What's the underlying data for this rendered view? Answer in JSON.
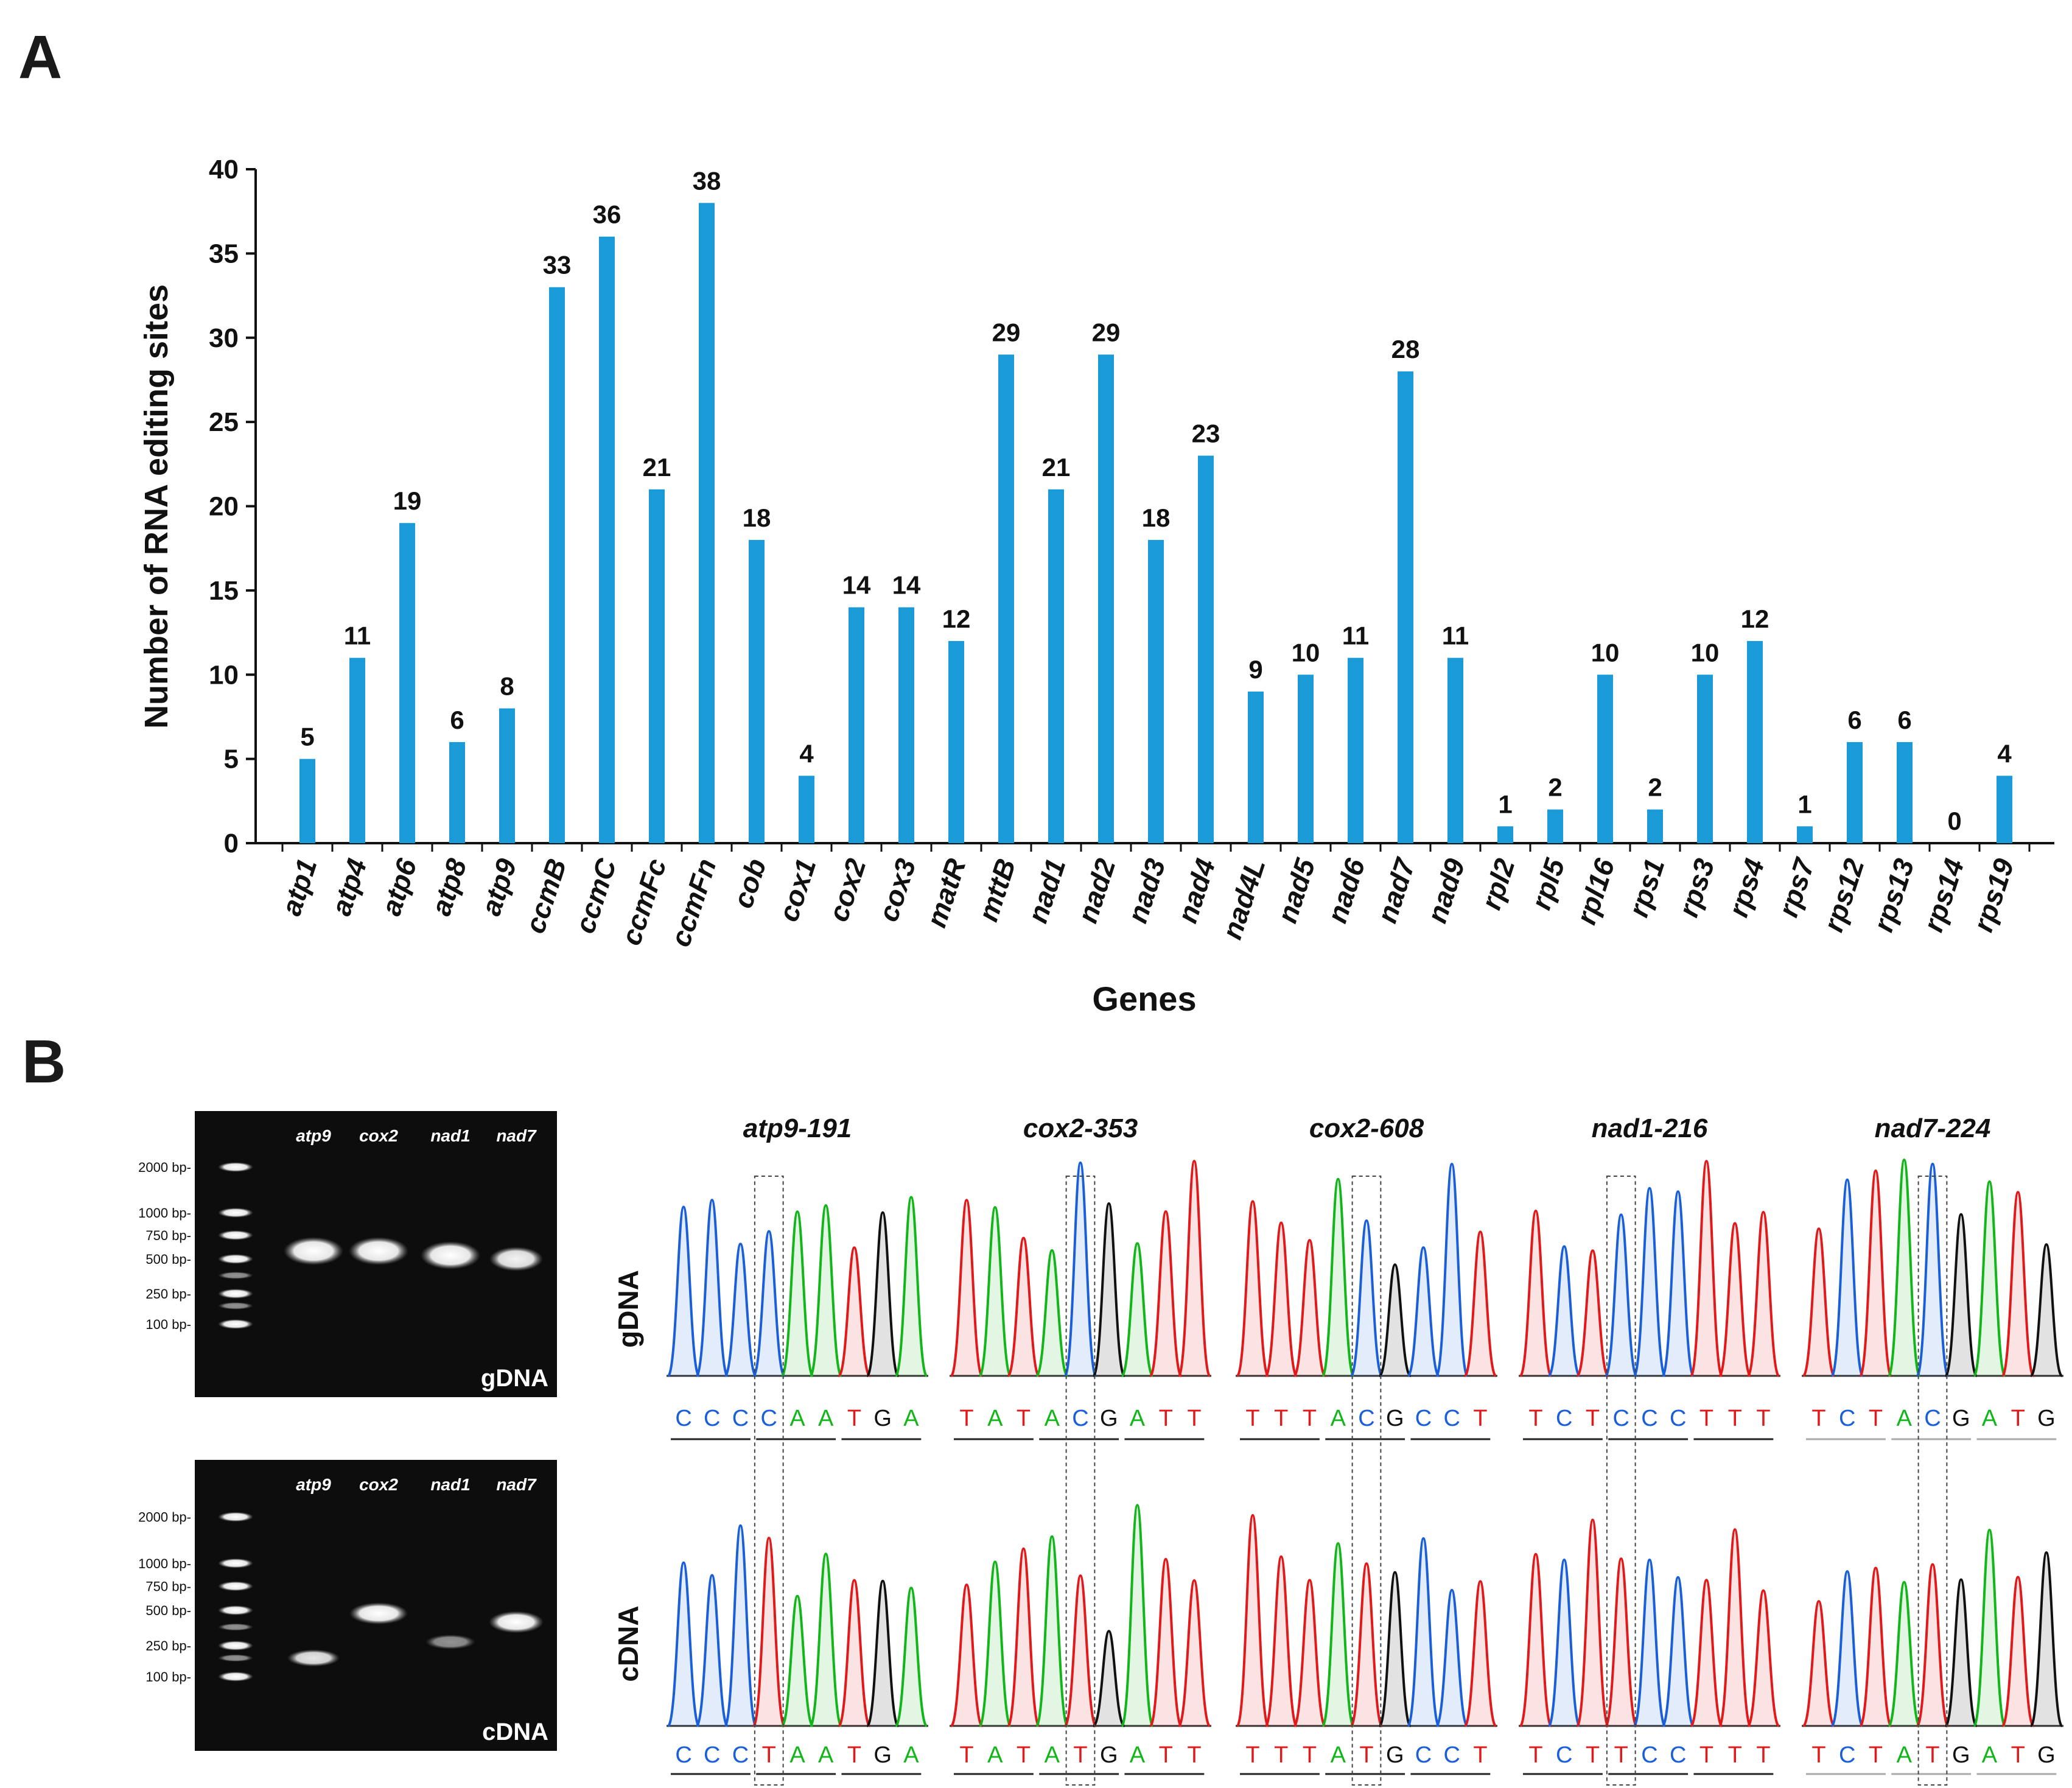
{
  "panel_a": {
    "label": "A",
    "chart_data": {
      "type": "bar",
      "title": "",
      "xlabel": "Genes",
      "ylabel": "Number of RNA editing sites",
      "ylim": [
        0,
        40
      ],
      "yticks": [
        0,
        5,
        10,
        15,
        20,
        25,
        30,
        35,
        40
      ],
      "grid": false,
      "bar_color": "#1a9ad6",
      "categories": [
        "atp1",
        "atp4",
        "atp6",
        "atp8",
        "atp9",
        "ccmB",
        "ccmC",
        "ccmFc",
        "ccmFn",
        "cob",
        "cox1",
        "cox2",
        "cox3",
        "matR",
        "mttB",
        "nad1",
        "nad2",
        "nad3",
        "nad4",
        "nad4L",
        "nad5",
        "nad6",
        "nad7",
        "nad9",
        "rpl2",
        "rpl5",
        "rpl16",
        "rps1",
        "rps3",
        "rps4",
        "rps7",
        "rps12",
        "rps13",
        "rps14",
        "rps19"
      ],
      "values": [
        5,
        11,
        19,
        6,
        8,
        33,
        36,
        21,
        38,
        18,
        4,
        14,
        14,
        12,
        29,
        21,
        29,
        18,
        23,
        9,
        10,
        11,
        28,
        11,
        1,
        2,
        10,
        2,
        10,
        12,
        1,
        6,
        6,
        0,
        4
      ]
    }
  },
  "panel_b": {
    "label": "B",
    "gels": [
      {
        "tag": "gDNA",
        "ladder": [
          "2000 bp-",
          "1000 bp-",
          "750 bp-",
          "500 bp-",
          "250 bp-",
          "100 bp-"
        ],
        "lanes": [
          "atp9",
          "cox2",
          "nad1",
          "nad7"
        ]
      },
      {
        "tag": "cDNA",
        "ladder": [
          "2000 bp-",
          "1000 bp-",
          "750 bp-",
          "500 bp-",
          "250 bp-",
          "100 bp-"
        ],
        "lanes": [
          "atp9",
          "cox2",
          "nad1",
          "nad7"
        ]
      }
    ],
    "row_labels": [
      "gDNA",
      "cDNA"
    ],
    "sites": [
      {
        "title": "atp9-191",
        "gdna": [
          "C",
          "C",
          "C",
          "C",
          "A",
          "A",
          "T",
          "G",
          "A"
        ],
        "cdna": [
          "C",
          "C",
          "C",
          "T",
          "A",
          "A",
          "T",
          "G",
          "A"
        ]
      },
      {
        "title": "cox2-353",
        "gdna": [
          "T",
          "A",
          "T",
          "A",
          "C",
          "G",
          "A",
          "T",
          "T"
        ],
        "cdna": [
          "T",
          "A",
          "T",
          "A",
          "T",
          "G",
          "A",
          "T",
          "T"
        ]
      },
      {
        "title": "cox2-608",
        "gdna": [
          "T",
          "T",
          "T",
          "A",
          "C",
          "G",
          "C",
          "C",
          "T"
        ],
        "cdna": [
          "T",
          "T",
          "T",
          "A",
          "T",
          "G",
          "C",
          "C",
          "T"
        ]
      },
      {
        "title": "nad1-216",
        "gdna": [
          "T",
          "C",
          "T",
          "C",
          "C",
          "C",
          "T",
          "T",
          "T"
        ],
        "cdna": [
          "T",
          "C",
          "T",
          "T",
          "C",
          "C",
          "T",
          "T",
          "T"
        ]
      },
      {
        "title": "nad7-224",
        "gdna": [
          "T",
          "C",
          "T",
          "A",
          "C",
          "G",
          "A",
          "T",
          "G"
        ],
        "cdna": [
          "T",
          "C",
          "T",
          "A",
          "T",
          "G",
          "A",
          "T",
          "G"
        ]
      }
    ],
    "base_colors": {
      "A": "#12b51a",
      "C": "#1a5fd8",
      "G": "#111111",
      "T": "#e01a1a"
    }
  }
}
